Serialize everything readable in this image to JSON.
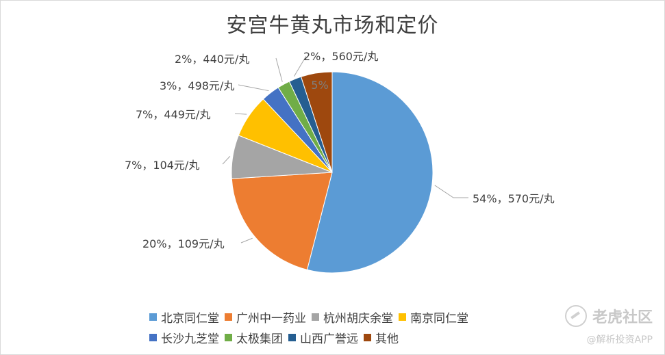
{
  "chart_data": {
    "type": "pie",
    "title": "安宫牛黄丸市场和定价",
    "start_angle_deg": 0,
    "direction": "clockwise",
    "slices": [
      {
        "name": "北京同仁堂",
        "value": 54,
        "label": "54%，570元/丸",
        "color": "#5b9bd5"
      },
      {
        "name": "广州中一药业",
        "value": 20,
        "label": "20%，109元/丸",
        "color": "#ed7d31"
      },
      {
        "name": "杭州胡庆余堂",
        "value": 7,
        "label": "7%，104元/丸",
        "color": "#a5a5a5"
      },
      {
        "name": "南京同仁堂",
        "value": 7,
        "label": "7%，449元/丸",
        "color": "#ffc000"
      },
      {
        "name": "长沙九芝堂",
        "value": 3,
        "label": "3%，498元/丸",
        "color": "#4472c4"
      },
      {
        "name": "太极集团",
        "value": 2,
        "label": "2%，440元/丸",
        "color": "#70ad47"
      },
      {
        "name": "山西广誉远",
        "value": 2,
        "label": "2%，560元/丸",
        "color": "#255e91"
      },
      {
        "name": "其他",
        "value": 5,
        "label": "5%",
        "color": "#9e480e"
      }
    ],
    "legend_position": "bottom"
  },
  "watermark": {
    "brand": "老虎社区",
    "handle": "@解析投资APP"
  }
}
